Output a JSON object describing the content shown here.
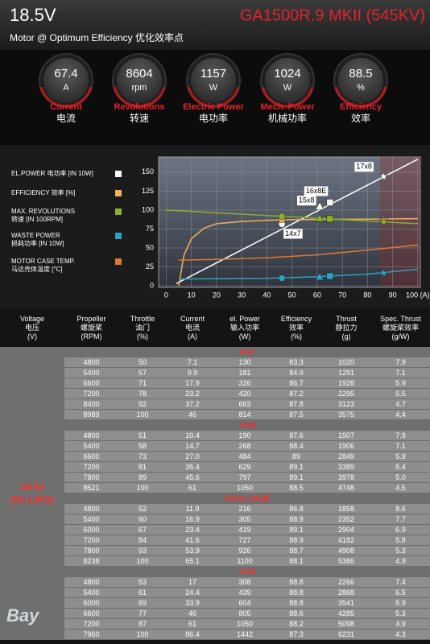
{
  "header": {
    "voltage": "18.5V",
    "model": "GA1500R.9 MKII (545KV)",
    "subtitle": "Motor @ Optimum Efficiency  优化效率点"
  },
  "gauges": [
    {
      "value": "67.4",
      "unit": "A",
      "label": "Current",
      "label_cn": "电流"
    },
    {
      "value": "8604",
      "unit": "rpm",
      "label": "Revolutions",
      "label_cn": "转速"
    },
    {
      "value": "1157",
      "unit": "W",
      "label": "Electric Power",
      "label_cn": "电功率"
    },
    {
      "value": "1024",
      "unit": "W",
      "label": "Mech. Power",
      "label_cn": "机械功率"
    },
    {
      "value": "88.5",
      "unit": "%",
      "label": "Efficiency",
      "label_cn": "效率"
    }
  ],
  "chart_data": {
    "type": "line",
    "xlim": [
      -3,
      101
    ],
    "ylim": [
      -2,
      170
    ],
    "xticks": [
      0,
      10,
      20,
      30,
      40,
      50,
      60,
      70,
      80,
      90,
      {
        "value": 100,
        "label": "100 (A)"
      }
    ],
    "yticks": [
      0,
      25,
      50,
      75,
      100,
      125,
      150
    ],
    "grid": true,
    "shade_from": 85,
    "marker_shapes": [
      "circle",
      "triangle",
      "square",
      "star"
    ],
    "series": [
      {
        "name": "EL.POWER 电功率 [IN 10W]",
        "color": "#ffffff",
        "x": [
          4,
          100
        ],
        "values": [
          3,
          167
        ],
        "markers": {
          "x": [
            46,
            61,
            65.1,
            86.4
          ],
          "values": [
            81.4,
            105,
            110,
            144.2
          ]
        }
      },
      {
        "name": "EFFICIENCY 效率 [%]",
        "color": "#f4b05a",
        "x": [
          5,
          7,
          10,
          15,
          20,
          30,
          40,
          50,
          60,
          70,
          80,
          90,
          100
        ],
        "values": [
          0,
          40,
          62,
          76,
          82,
          85,
          86.5,
          87.3,
          87.6,
          87.8,
          88,
          88.3,
          88.7
        ],
        "markers": {
          "x": [
            46,
            61,
            65.1,
            86.4
          ],
          "values": [
            87.5,
            88.5,
            88.1,
            87.3
          ]
        }
      },
      {
        "name": "MAX. REVOLUTIONS\n转速 [IN 100RPM]",
        "color": "#8db02b",
        "x": [
          0,
          100
        ],
        "values": [
          100,
          82
        ],
        "markers": {
          "x": [
            46,
            61,
            65.1,
            86.4
          ],
          "values": [
            91.7,
            89,
            88.3,
            84.4
          ]
        }
      },
      {
        "name": "WASTE POWER\n损耗功率 [IN 10W]",
        "color": "#2aa3c5",
        "x": [
          5,
          20,
          40,
          60,
          80,
          100
        ],
        "values": [
          9,
          9.5,
          10,
          12,
          15.5,
          22
        ],
        "markers": {
          "x": [
            46,
            61,
            65.1,
            86.4
          ],
          "values": [
            10.2,
            12,
            12.9,
            17
          ]
        }
      },
      {
        "name": "MOTOR CASE TEMP.\n马达壳体温度 [°C]",
        "color": "#e07a30",
        "x": [
          5,
          20,
          40,
          60,
          80,
          100
        ],
        "values": [
          34,
          35,
          37,
          41,
          47,
          54
        ]
      }
    ],
    "annotations": [
      {
        "text": "14x7",
        "x": 46,
        "y": 81.4
      },
      {
        "text": "15x8",
        "x": 61,
        "y": 105
      },
      {
        "text": "16x8E",
        "x": 65.1,
        "y": 110
      },
      {
        "text": "17x8",
        "x": 86.4,
        "y": 144.2
      }
    ]
  },
  "table": {
    "headers": [
      "Voltage\n电压\n(V)",
      "Propeller\n螺旋桨\n(RPM)",
      "Throttle\n油门\n(%)",
      "Current\n电流\n(A)",
      "el. Power\n输入功率\n(W)",
      "Efficiency\n效率\n(%)",
      "Thrust\n静拉力\n(g)",
      "Spec. Thrust\n螺旋桨效率\n(g/W)"
    ],
    "voltage": "18.5V\n(5S LIPO)",
    "groups": [
      {
        "name": "14x7",
        "rows": [
          [
            "4800",
            "50",
            "7.1",
            "130",
            "83.3",
            "1020",
            "7.9"
          ],
          [
            "5400",
            "57",
            "9.9",
            "181",
            "84.9",
            "1291",
            "7.1"
          ],
          [
            "6600",
            "71",
            "17.9",
            "326",
            "86.7",
            "1928",
            "5.9"
          ],
          [
            "7200",
            "78",
            "23.2",
            "420",
            "87.2",
            "2295",
            "5.5"
          ],
          [
            "8400",
            "92",
            "37.2",
            "663",
            "87.8",
            "3123",
            "4.7"
          ],
          [
            "8989",
            "100",
            "46",
            "814",
            "87.5",
            "3575",
            "4.4"
          ]
        ]
      },
      {
        "name": "15x8",
        "rows": [
          [
            "4800",
            "51",
            "10.4",
            "190",
            "87.6",
            "1507",
            "7.9"
          ],
          [
            "5400",
            "58",
            "14.7",
            "268",
            "88.4",
            "1906",
            "7.1"
          ],
          [
            "6600",
            "73",
            "27.0",
            "484",
            "89",
            "2849",
            "5.9"
          ],
          [
            "7200",
            "81",
            "35.4",
            "629",
            "89.1",
            "3389",
            "5.4"
          ],
          [
            "7800",
            "89",
            "45.6",
            "797",
            "89.1",
            "3978",
            "5.0"
          ],
          [
            "8521",
            "100",
            "61",
            "1050",
            "88.5",
            "4748",
            "4.5"
          ]
        ]
      },
      {
        "name": "Falcon 16x8E",
        "rows": [
          [
            "4800",
            "52",
            "11.9",
            "216",
            "86.8",
            "1858",
            "8.6"
          ],
          [
            "5400",
            "60",
            "16.9",
            "305",
            "88.9",
            "2352",
            "7.7"
          ],
          [
            "6000",
            "67",
            "23.4",
            "419",
            "89.1",
            "2904",
            "6.9"
          ],
          [
            "7200",
            "84",
            "41.6",
            "727",
            "88.9",
            "4182",
            "5.8"
          ],
          [
            "7800",
            "93",
            "53.9",
            "926",
            "88.7",
            "4908",
            "5.3"
          ],
          [
            "8238",
            "100",
            "65.1",
            "1100",
            "88.1",
            "5386",
            "4.9"
          ]
        ]
      },
      {
        "name": "17x8",
        "rows": [
          [
            "4800",
            "53",
            "17",
            "308",
            "88.8",
            "2266",
            "7.4"
          ],
          [
            "5400",
            "61",
            "24.4",
            "439",
            "88.8",
            "2868",
            "6.5"
          ],
          [
            "6000",
            "69",
            "33.9",
            "604",
            "88.8",
            "3541",
            "5.9"
          ],
          [
            "6600",
            "77",
            "46",
            "805",
            "88.6",
            "4285",
            "5.3"
          ],
          [
            "7200",
            "87",
            "61",
            "1050",
            "88.2",
            "5098",
            "4.9"
          ],
          [
            "7960",
            "100",
            "86.4",
            "1442",
            "87.3",
            "6231",
            "4.3"
          ]
        ]
      }
    ]
  },
  "logo": "Bay"
}
